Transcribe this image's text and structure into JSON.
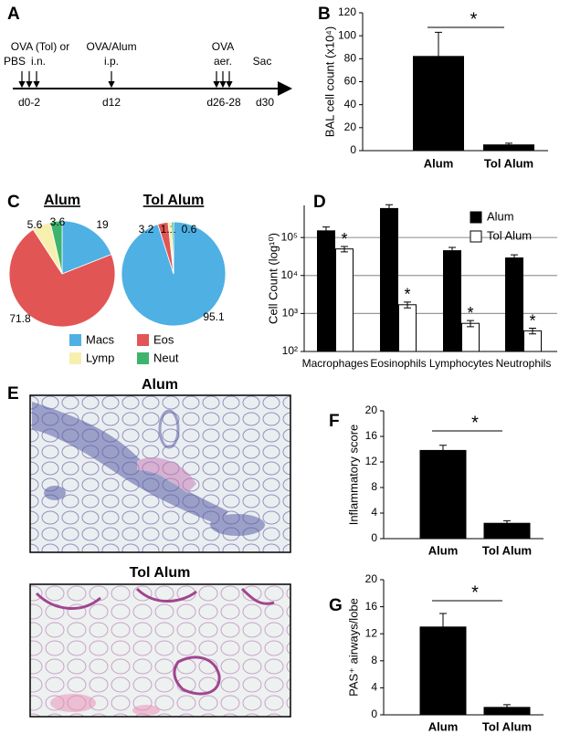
{
  "panel_labels": [
    "A",
    "B",
    "C",
    "D",
    "E",
    "F",
    "G"
  ],
  "timeline": {
    "labels": [
      "OVA (Tol) or",
      "PBS",
      "i.n.",
      "OVA/Alum",
      "i.p.",
      "OVA",
      "aer.",
      "Sac"
    ],
    "days": [
      "d0-2",
      "d12",
      "d26-28",
      "d30"
    ]
  },
  "images": [
    {
      "title": "Alum"
    },
    {
      "title": "Tol Alum"
    }
  ],
  "chart_data": [
    {
      "type": "bar",
      "categories": [
        "Alum",
        "Tol Alum"
      ],
      "values": [
        82,
        5
      ],
      "errors": [
        21,
        1.5
      ],
      "color": "#000000",
      "ylabel": "BAL cell count (x10⁴)",
      "ylim": [
        0,
        120
      ],
      "yticks": [
        0,
        20,
        40,
        60,
        80,
        100,
        120
      ],
      "annotation": "*"
    },
    {
      "type": "pie",
      "title": "Alum",
      "categories": [
        "Macs",
        "Eos",
        "Lymp",
        "Neut"
      ],
      "values": [
        19,
        71.8,
        5.6,
        3.6
      ],
      "colors": [
        "#4fb0e3",
        "#e25555",
        "#f7efad",
        "#3cb46e"
      ],
      "legend": true
    },
    {
      "type": "pie",
      "title": "Tol Alum",
      "categories": [
        "Macs",
        "Eos",
        "Lymp",
        "Neut"
      ],
      "values": [
        95.1,
        3.2,
        1.1,
        0.6
      ],
      "colors": [
        "#4fb0e3",
        "#e25555",
        "#f7efad",
        "#3cb46e"
      ],
      "legend": false
    },
    {
      "type": "bar",
      "log_scale": true,
      "grid": true,
      "ylabel": "Cell Count (log¹⁰)",
      "categories": [
        "Macrophages",
        "Eosinophils",
        "Lymphocytes",
        "Neutrophils"
      ],
      "series": [
        {
          "name": "Alum",
          "color": "#000000",
          "values": [
            150000,
            580000,
            45000,
            29000
          ],
          "errors": [
            40000,
            150000,
            10000,
            6000
          ]
        },
        {
          "name": "Tol Alum",
          "color": "#ffffff",
          "values": [
            50000,
            1700,
            550,
            350
          ],
          "errors": [
            8000,
            300,
            100,
            60
          ]
        }
      ],
      "annotations": [
        "*",
        "*",
        "*",
        "*"
      ],
      "ylim": [
        100,
        700000
      ],
      "yticks": [
        {
          "value": 100,
          "label": "10²"
        },
        {
          "value": 1000,
          "label": "10³"
        },
        {
          "value": 10000,
          "label": "10⁴"
        },
        {
          "value": 100000,
          "label": "10⁵"
        }
      ]
    },
    {
      "type": "bar",
      "categories": [
        "Alum",
        "Tol Alum"
      ],
      "values": [
        13.8,
        2.4
      ],
      "errors": [
        0.8,
        0.4
      ],
      "color": "#000000",
      "ylabel": "Inflammatory score",
      "ylim": [
        0,
        20
      ],
      "yticks": [
        0,
        4,
        8,
        12,
        16,
        20
      ],
      "annotation": "*"
    },
    {
      "type": "bar",
      "categories": [
        "Alum",
        "Tol Alum"
      ],
      "values": [
        13,
        1.1
      ],
      "errors": [
        2,
        0.4
      ],
      "color": "#000000",
      "ylabel": "PAS⁺ airways/lobe",
      "ylim": [
        0,
        20
      ],
      "yticks": [
        0,
        4,
        8,
        12,
        16,
        20
      ],
      "annotation": "*"
    }
  ]
}
